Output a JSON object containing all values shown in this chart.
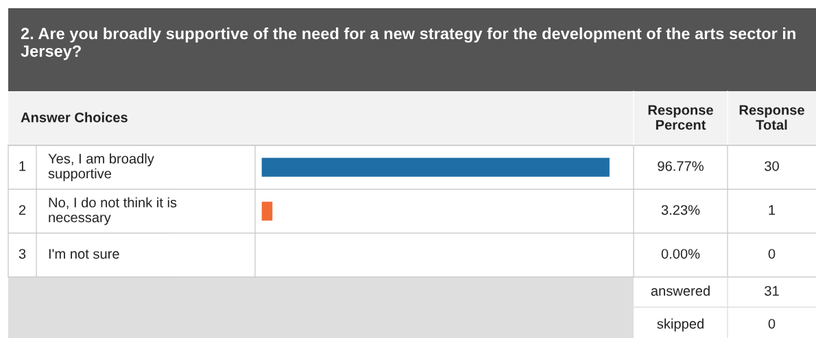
{
  "chart_data": {
    "type": "bar",
    "orientation": "horizontal",
    "title": "2. Are you broadly supportive of the need for a new strategy for the development of the arts sector in Jersey?",
    "categories": [
      "Yes, I am broadly supportive",
      "No, I do not think it is necessary",
      "I'm not sure"
    ],
    "values": [
      96.77,
      3.23,
      0.0
    ],
    "colors": [
      "#1f6ea5",
      "#f26b35",
      null
    ],
    "value_labels": [
      "96.77%",
      "3.23%",
      "0.00%"
    ],
    "tick_labels": false,
    "grid": false,
    "legend": false,
    "annotations": [
      "Answer Choices",
      "Response Percent",
      "Response Total",
      "1",
      "2",
      "3",
      "30",
      "1",
      "0",
      "answered",
      "31",
      "skipped",
      "0"
    ]
  }
}
